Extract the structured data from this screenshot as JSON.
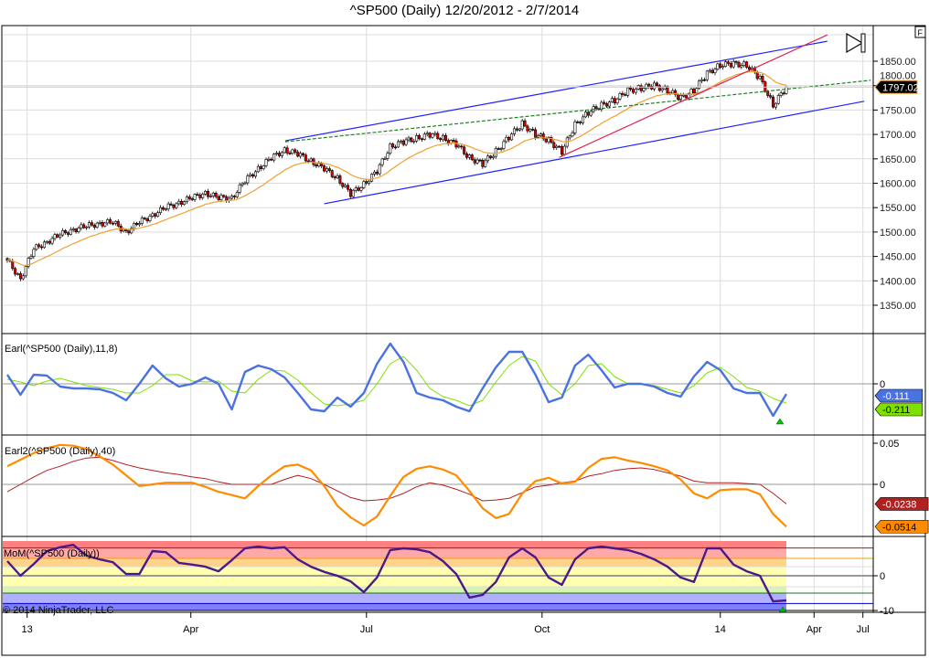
{
  "title": "^SP500 (Daily)  12/20/2012 - 2/7/2014",
  "copyright": "© 2014 NinjaTrader, LLC",
  "f_button": "F",
  "colors": {
    "candle_up": "#ffffff",
    "candle_down": "#e00000",
    "ma": "#f0a030",
    "channel": "#2020ff",
    "midline": "#208020",
    "trend_red": "#e0204a",
    "earl": "#4a72e0",
    "earl_signal": "#7fe000",
    "earl2": "#ff8c00",
    "earl2_signal": "#b22020",
    "mom": "#4b1a8a"
  },
  "chart_data": [
    {
      "type": "candlestick",
      "title": "^SP500 (Daily)",
      "x_unit": "weeks since 12/20/2012",
      "x_ticks": [
        {
          "label": "13",
          "w": 1.5
        },
        {
          "label": "Apr",
          "w": 13.9
        },
        {
          "label": "Jul",
          "w": 27.2
        },
        {
          "label": "Oct",
          "w": 40.5
        },
        {
          "label": "14",
          "w": 54.0
        },
        {
          "label": "Apr",
          "w": 61.1
        },
        {
          "label": "Jul",
          "w": 64.8
        }
      ],
      "y_ticks": [
        "1350.00",
        "1400.00",
        "1450.00",
        "1500.00",
        "1550.00",
        "1600.00",
        "1650.00",
        "1700.00",
        "1750.00",
        "1800.00",
        "1850.00"
      ],
      "ylim": [
        1300,
        1900
      ],
      "last_price": "1797.02",
      "weekly_closes": [
        1442,
        1404,
        1465,
        1480,
        1495,
        1505,
        1512,
        1518,
        1520,
        1500,
        1520,
        1535,
        1550,
        1560,
        1570,
        1580,
        1570,
        1570,
        1605,
        1630,
        1652,
        1668,
        1660,
        1645,
        1630,
        1610,
        1578,
        1598,
        1625,
        1675,
        1685,
        1692,
        1700,
        1692,
        1680,
        1652,
        1640,
        1665,
        1695,
        1722,
        1700,
        1688,
        1665,
        1720,
        1745,
        1760,
        1770,
        1790,
        1795,
        1800,
        1790,
        1775,
        1790,
        1825,
        1842,
        1845,
        1842,
        1815,
        1760,
        1797.02
      ],
      "trend_lines": [
        {
          "name": "channel-upper",
          "color": "channel",
          "dash": false,
          "from": [
            21.05,
            1687
          ],
          "to": [
            62.1,
            1891
          ]
        },
        {
          "name": "channel-lower",
          "color": "channel",
          "dash": false,
          "from": [
            24.0,
            1558
          ],
          "to": [
            64.9,
            1768
          ]
        },
        {
          "name": "channel-mid",
          "color": "midline",
          "dash": true,
          "from": [
            21.05,
            1685
          ],
          "to": [
            65.4,
            1811
          ]
        },
        {
          "name": "trend-red",
          "color": "trend_red",
          "dash": false,
          "from": [
            41.8,
            1653
          ],
          "to": [
            62.1,
            1904
          ]
        }
      ]
    },
    {
      "type": "line",
      "label": "Earl(^SP500 (Daily),11,8)",
      "y_ticks": [
        "0"
      ],
      "series": [
        {
          "name": "Earl",
          "color": "earl",
          "last": "-0.111",
          "values": [
            0.1,
            -0.12,
            0.1,
            0.09,
            -0.03,
            -0.05,
            -0.05,
            -0.06,
            -0.1,
            -0.18,
            0.0,
            0.2,
            0.06,
            -0.03,
            0.0,
            0.07,
            0.0,
            -0.28,
            0.13,
            0.2,
            0.16,
            0.07,
            -0.1,
            -0.28,
            -0.3,
            -0.15,
            -0.25,
            -0.1,
            0.22,
            0.44,
            0.24,
            -0.1,
            -0.15,
            -0.18,
            -0.25,
            -0.3,
            -0.05,
            0.18,
            0.35,
            0.35,
            0.1,
            -0.2,
            -0.15,
            0.2,
            0.32,
            0.15,
            -0.04,
            0.0,
            0.0,
            -0.03,
            -0.1,
            -0.14,
            0.08,
            0.24,
            0.15,
            -0.05,
            -0.1,
            -0.1,
            -0.35,
            -0.111
          ]
        },
        {
          "name": "Signal",
          "color": "earl_signal",
          "last": "-0.211",
          "values": [
            0.05,
            0.02,
            -0.02,
            0.03,
            0.06,
            0.02,
            -0.02,
            -0.04,
            -0.06,
            -0.1,
            -0.1,
            -0.02,
            0.1,
            0.1,
            0.03,
            0.02,
            0.03,
            -0.08,
            -0.1,
            0.05,
            0.15,
            0.14,
            0.04,
            -0.1,
            -0.22,
            -0.24,
            -0.22,
            -0.18,
            0.0,
            0.22,
            0.3,
            0.15,
            -0.05,
            -0.14,
            -0.18,
            -0.24,
            -0.18,
            0.02,
            0.2,
            0.3,
            0.25,
            0.0,
            -0.12,
            0.0,
            0.2,
            0.22,
            0.08,
            0.0,
            0.0,
            -0.02,
            -0.06,
            -0.1,
            -0.02,
            0.12,
            0.18,
            0.08,
            -0.04,
            -0.08,
            -0.16,
            -0.211
          ]
        }
      ]
    },
    {
      "type": "line",
      "label": "Earl2(^SP500 (Daily),40)",
      "y_ticks": [
        "0.05",
        "0"
      ],
      "series": [
        {
          "name": "Earl2",
          "color": "earl2",
          "last": "-0.0514",
          "values": [
            0.022,
            0.03,
            0.038,
            0.044,
            0.048,
            0.047,
            0.043,
            0.034,
            0.024,
            0.011,
            -0.002,
            0.0,
            0.002,
            0.002,
            0.002,
            -0.003,
            -0.009,
            -0.013,
            -0.017,
            -0.002,
            0.011,
            0.022,
            0.024,
            0.017,
            -0.002,
            -0.026,
            -0.04,
            -0.05,
            -0.039,
            -0.014,
            0.009,
            0.019,
            0.022,
            0.018,
            0.011,
            -0.008,
            -0.029,
            -0.041,
            -0.036,
            -0.011,
            0.004,
            0.008,
            0.001,
            0.003,
            0.02,
            0.031,
            0.033,
            0.029,
            0.026,
            0.022,
            0.017,
            0.006,
            -0.011,
            -0.017,
            -0.007,
            -0.006,
            -0.006,
            -0.012,
            -0.036,
            -0.0514
          ]
        },
        {
          "name": "Signal",
          "color": "earl2_signal",
          "last": "-0.0238",
          "values": [
            -0.009,
            0.0,
            0.009,
            0.017,
            0.022,
            0.028,
            0.032,
            0.033,
            0.029,
            0.024,
            0.02,
            0.017,
            0.014,
            0.012,
            0.009,
            0.007,
            0.003,
            0,
            0,
            0,
            0,
            0.006,
            0.011,
            0.007,
            0,
            -0.008,
            -0.016,
            -0.02,
            -0.019,
            -0.017,
            -0.011,
            -0.003,
            0.002,
            -0.001,
            -0.006,
            -0.012,
            -0.02,
            -0.019,
            -0.017,
            -0.01,
            -0.003,
            -0.001,
            0.002,
            0.004,
            0.01,
            0.013,
            0.017,
            0.019,
            0.02,
            0.018,
            0.014,
            0.01,
            0.004,
            0.002,
            0.002,
            0.002,
            0.001,
            0,
            -0.011,
            -0.0238
          ]
        }
      ]
    },
    {
      "type": "line",
      "label": "MoM(^SP500 (Daily))",
      "y_ticks": [
        "0",
        "-10"
      ],
      "levels": [
        8,
        5,
        -5,
        -8
      ],
      "series": [
        {
          "name": "MoM",
          "color": "mom",
          "values": [
            4.2,
            0,
            3.4,
            7.1,
            8.2,
            8.9,
            5.8,
            4.7,
            3.9,
            0.5,
            0.5,
            7.1,
            6.8,
            3.7,
            3.2,
            2.6,
            1.3,
            4.5,
            7.9,
            8.4,
            7.9,
            8.2,
            4.7,
            2.6,
            1.1,
            0,
            -1.6,
            -4.7,
            -0.5,
            7.4,
            7.9,
            7.6,
            6.8,
            4.2,
            0.5,
            -6.3,
            -5.5,
            -1.8,
            5.3,
            7.9,
            5.3,
            -0.5,
            -2.6,
            4.7,
            7.9,
            8.4,
            7.9,
            7.4,
            6.3,
            4.7,
            2.6,
            -0.5,
            -1.8,
            7.9,
            7.9,
            3.2,
            1.3,
            0,
            -7.4,
            -7.1
          ]
        }
      ]
    }
  ]
}
